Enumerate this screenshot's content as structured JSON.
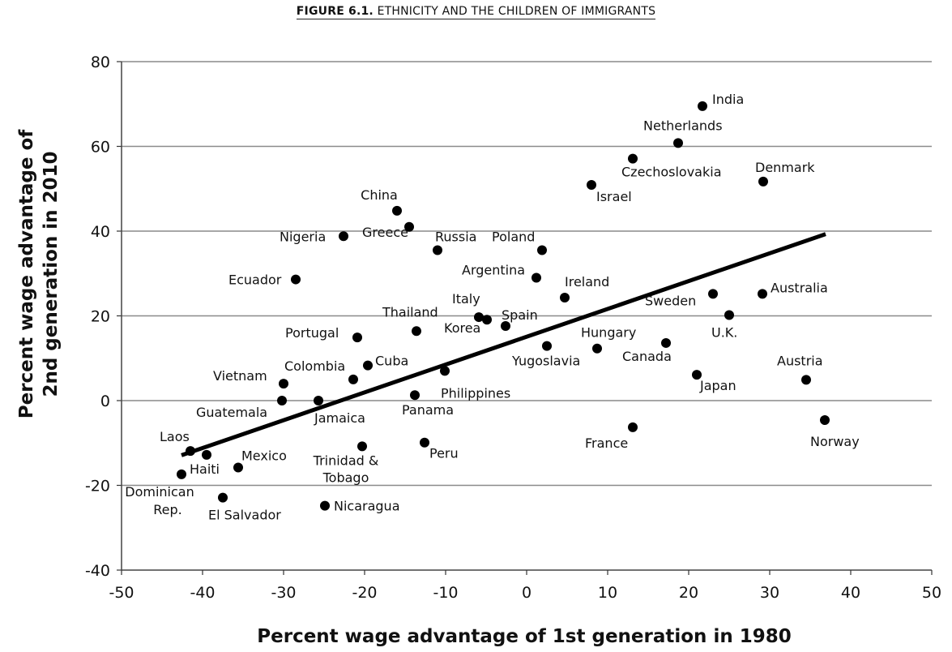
{
  "figure": {
    "number": "FIGURE 6.1.",
    "title": "ETHNICITY AND THE CHILDREN OF IMMIGRANTS"
  },
  "chart_data": {
    "type": "scatter",
    "title": "ETHNICITY AND THE CHILDREN OF IMMIGRANTS",
    "xlabel": "Percent wage advantage of 1st generation in 1980",
    "ylabel_lines": [
      "Percent wage advantage of",
      "2nd generation in 2010"
    ],
    "xlim": [
      -50,
      50
    ],
    "ylim": [
      -40,
      80
    ],
    "xticks": [
      -50,
      -40,
      -30,
      -20,
      -10,
      0,
      10,
      20,
      30,
      40,
      50
    ],
    "yticks": [
      -40,
      -20,
      0,
      20,
      40,
      60,
      80
    ],
    "grid": "horizontal",
    "points": [
      {
        "name": "India",
        "x": 21.7,
        "y": 69.5
      },
      {
        "name": "Netherlands",
        "x": 18.7,
        "y": 60.8
      },
      {
        "name": "Czechoslovakia",
        "x": 13.1,
        "y": 57.1
      },
      {
        "name": "Israel",
        "x": 8.0,
        "y": 50.9
      },
      {
        "name": "Denmark",
        "x": 29.2,
        "y": 51.7
      },
      {
        "name": "China",
        "x": -16.0,
        "y": 44.8
      },
      {
        "name": "Greece",
        "x": -14.5,
        "y": 41.0
      },
      {
        "name": "Nigeria",
        "x": -22.6,
        "y": 38.8
      },
      {
        "name": "Russia",
        "x": -11.0,
        "y": 35.5
      },
      {
        "name": "Poland",
        "x": 1.9,
        "y": 35.5
      },
      {
        "name": "Argentina",
        "x": 1.2,
        "y": 29.0
      },
      {
        "name": "Ecuador",
        "x": -28.5,
        "y": 28.6
      },
      {
        "name": "Ireland",
        "x": 4.7,
        "y": 24.3
      },
      {
        "name": "Sweden",
        "x": 23.0,
        "y": 25.2
      },
      {
        "name": "Australia",
        "x": 29.1,
        "y": 25.2
      },
      {
        "name": "U.K.",
        "x": 25.0,
        "y": 20.2
      },
      {
        "name": "Italy",
        "x": -5.9,
        "y": 19.7
      },
      {
        "name": "Spain",
        "x": -4.9,
        "y": 19.1
      },
      {
        "name": "Korea",
        "x": -2.6,
        "y": 17.6
      },
      {
        "name": "Thailand",
        "x": -13.6,
        "y": 16.4
      },
      {
        "name": "Portugal",
        "x": -20.9,
        "y": 14.9
      },
      {
        "name": "Canada",
        "x": 17.2,
        "y": 13.6
      },
      {
        "name": "Yugoslavia",
        "x": 2.5,
        "y": 12.9
      },
      {
        "name": "Hungary",
        "x": 8.7,
        "y": 12.3
      },
      {
        "name": "Cuba",
        "x": -19.6,
        "y": 8.3
      },
      {
        "name": "Philippines",
        "x": -10.1,
        "y": 7.0
      },
      {
        "name": "Japan",
        "x": 21.0,
        "y": 6.1
      },
      {
        "name": "Colombia",
        "x": -21.4,
        "y": 5.0
      },
      {
        "name": "Austria",
        "x": 34.5,
        "y": 4.9
      },
      {
        "name": "Vietnam",
        "x": -30.0,
        "y": 4.0
      },
      {
        "name": "Panama",
        "x": -13.8,
        "y": 1.3
      },
      {
        "name": "Guatemala",
        "x": -30.2,
        "y": 0.0
      },
      {
        "name": "Jamaica",
        "x": -25.7,
        "y": 0.0
      },
      {
        "name": "Norway",
        "x": 36.8,
        "y": -4.6
      },
      {
        "name": "France",
        "x": 13.1,
        "y": -6.3
      },
      {
        "name": "Peru",
        "x": -12.6,
        "y": -9.9
      },
      {
        "name": "Trinidad & Tobago",
        "x": -20.3,
        "y": -10.8
      },
      {
        "name": "Laos",
        "x": -41.5,
        "y": -11.9
      },
      {
        "name": "Haiti",
        "x": -39.5,
        "y": -12.8
      },
      {
        "name": "Mexico",
        "x": -35.6,
        "y": -15.8
      },
      {
        "name": "Dominican Rep.",
        "x": -42.6,
        "y": -17.4
      },
      {
        "name": "El Salvador",
        "x": -37.5,
        "y": -22.9
      },
      {
        "name": "Nicaragua",
        "x": -24.9,
        "y": -24.8
      }
    ],
    "trendline": {
      "x1": -42.6,
      "y1": -12.9,
      "x2": 36.9,
      "y2": 39.3
    }
  }
}
